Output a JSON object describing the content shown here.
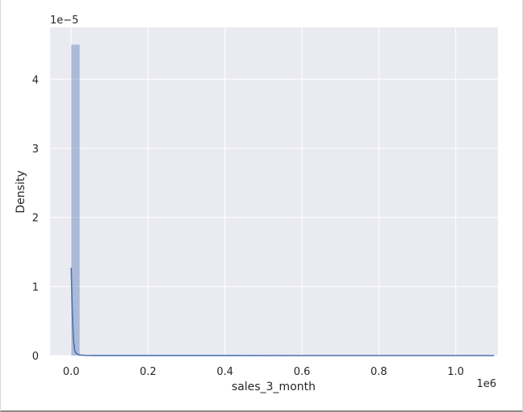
{
  "chart_data": {
    "type": "histogram",
    "title": "",
    "xlabel": "sales_3_month",
    "ylabel": "Density",
    "x_offset_text": "1e6",
    "y_offset_text": "1e−5",
    "xlim": [
      -55000,
      1110000
    ],
    "ylim": [
      0,
      4.75
    ],
    "x_ticks": [
      0.0,
      0.2,
      0.4,
      0.6,
      0.8,
      1.0
    ],
    "x_tick_labels": [
      "0.0",
      "0.2",
      "0.4",
      "0.6",
      "0.8",
      "1.0"
    ],
    "y_ticks": [
      0,
      1,
      2,
      3,
      4
    ],
    "y_tick_labels": [
      "0",
      "1",
      "2",
      "3",
      "4"
    ],
    "grid": true,
    "legend": "none",
    "histogram": {
      "bin_start": 0,
      "bin_width": 22000,
      "densities": [
        4.5
      ],
      "color": "#4c72b0",
      "opacity": 0.4
    },
    "kde": {
      "color": "#4c72b0",
      "x": [
        0,
        3000,
        6000,
        9000,
        12000,
        16000,
        22000,
        35000,
        60000,
        120000,
        300000,
        600000,
        900000,
        1100000
      ],
      "y": [
        1.27,
        0.6,
        0.22,
        0.08,
        0.04,
        0.02,
        0.008,
        0.003,
        0.001,
        0.0005,
        0.0002,
        0.0001,
        0.0001,
        0.0001
      ]
    },
    "background_color": "#eaeaf2",
    "grid_color": "#ffffff"
  }
}
